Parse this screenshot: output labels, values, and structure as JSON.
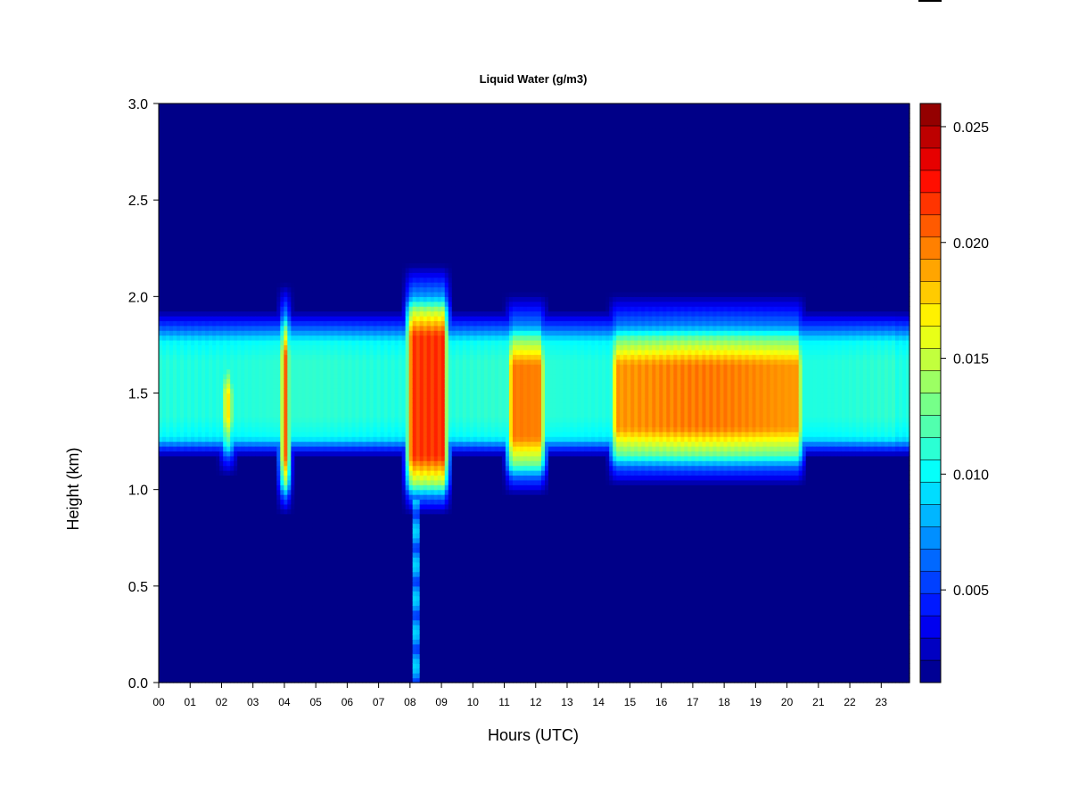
{
  "chart_data": {
    "type": "heatmap",
    "title": "Liquid Water (g/m3)",
    "xlabel": "Hours (UTC)",
    "ylabel": "Height (km)",
    "x_ticks": [
      "00",
      "01",
      "02",
      "03",
      "04",
      "05",
      "06",
      "07",
      "08",
      "09",
      "10",
      "11",
      "12",
      "13",
      "14",
      "15",
      "16",
      "17",
      "18",
      "19",
      "20",
      "21",
      "22",
      "23"
    ],
    "x_range_hours": [
      0,
      23.9
    ],
    "y_ticks": [
      "0.0",
      "0.5",
      "1.0",
      "1.5",
      "2.0",
      "2.5",
      "3.0"
    ],
    "y_range_km": [
      0.0,
      3.0
    ],
    "colorbar": {
      "range": [
        0.001,
        0.026
      ],
      "tick_labels": [
        "0.005",
        "0.010",
        "0.015",
        "0.020",
        "0.025"
      ],
      "tick_values": [
        0.005,
        0.01,
        0.015,
        0.02,
        0.025
      ],
      "levels": 26,
      "colors": [
        "#00007f",
        "#0000b0",
        "#0000e0",
        "#0010ff",
        "#0040ff",
        "#0070ff",
        "#00a0ff",
        "#00d0ff",
        "#10ffe0",
        "#40ffb0",
        "#70ff80",
        "#a0ff50",
        "#d0ff20",
        "#ffe000",
        "#ffb000",
        "#ff8000",
        "#ff5000",
        "#ff2000",
        "#e00000",
        "#b00000",
        "#800000"
      ]
    },
    "background_value": 0.0012,
    "cloud_layer": {
      "description_blocks": [
        {
          "t_start": 0.0,
          "t_end": 23.9,
          "base_km": 1.22,
          "top_km": 1.85,
          "value": 0.0095
        },
        {
          "t_start": 2.0,
          "t_end": 2.4,
          "base_km": 1.15,
          "top_km": 1.75,
          "value": 0.0175
        },
        {
          "t_start": 3.9,
          "t_end": 4.15,
          "base_km": 0.95,
          "top_km": 1.95,
          "value": 0.024
        },
        {
          "t_start": 7.9,
          "t_end": 9.2,
          "base_km": 0.95,
          "top_km": 2.05,
          "value": 0.022
        },
        {
          "t_start": 11.1,
          "t_end": 12.3,
          "base_km": 1.05,
          "top_km": 1.9,
          "value": 0.0195
        },
        {
          "t_start": 14.4,
          "t_end": 20.5,
          "base_km": 1.1,
          "top_km": 1.9,
          "value": 0.0195
        }
      ]
    }
  }
}
